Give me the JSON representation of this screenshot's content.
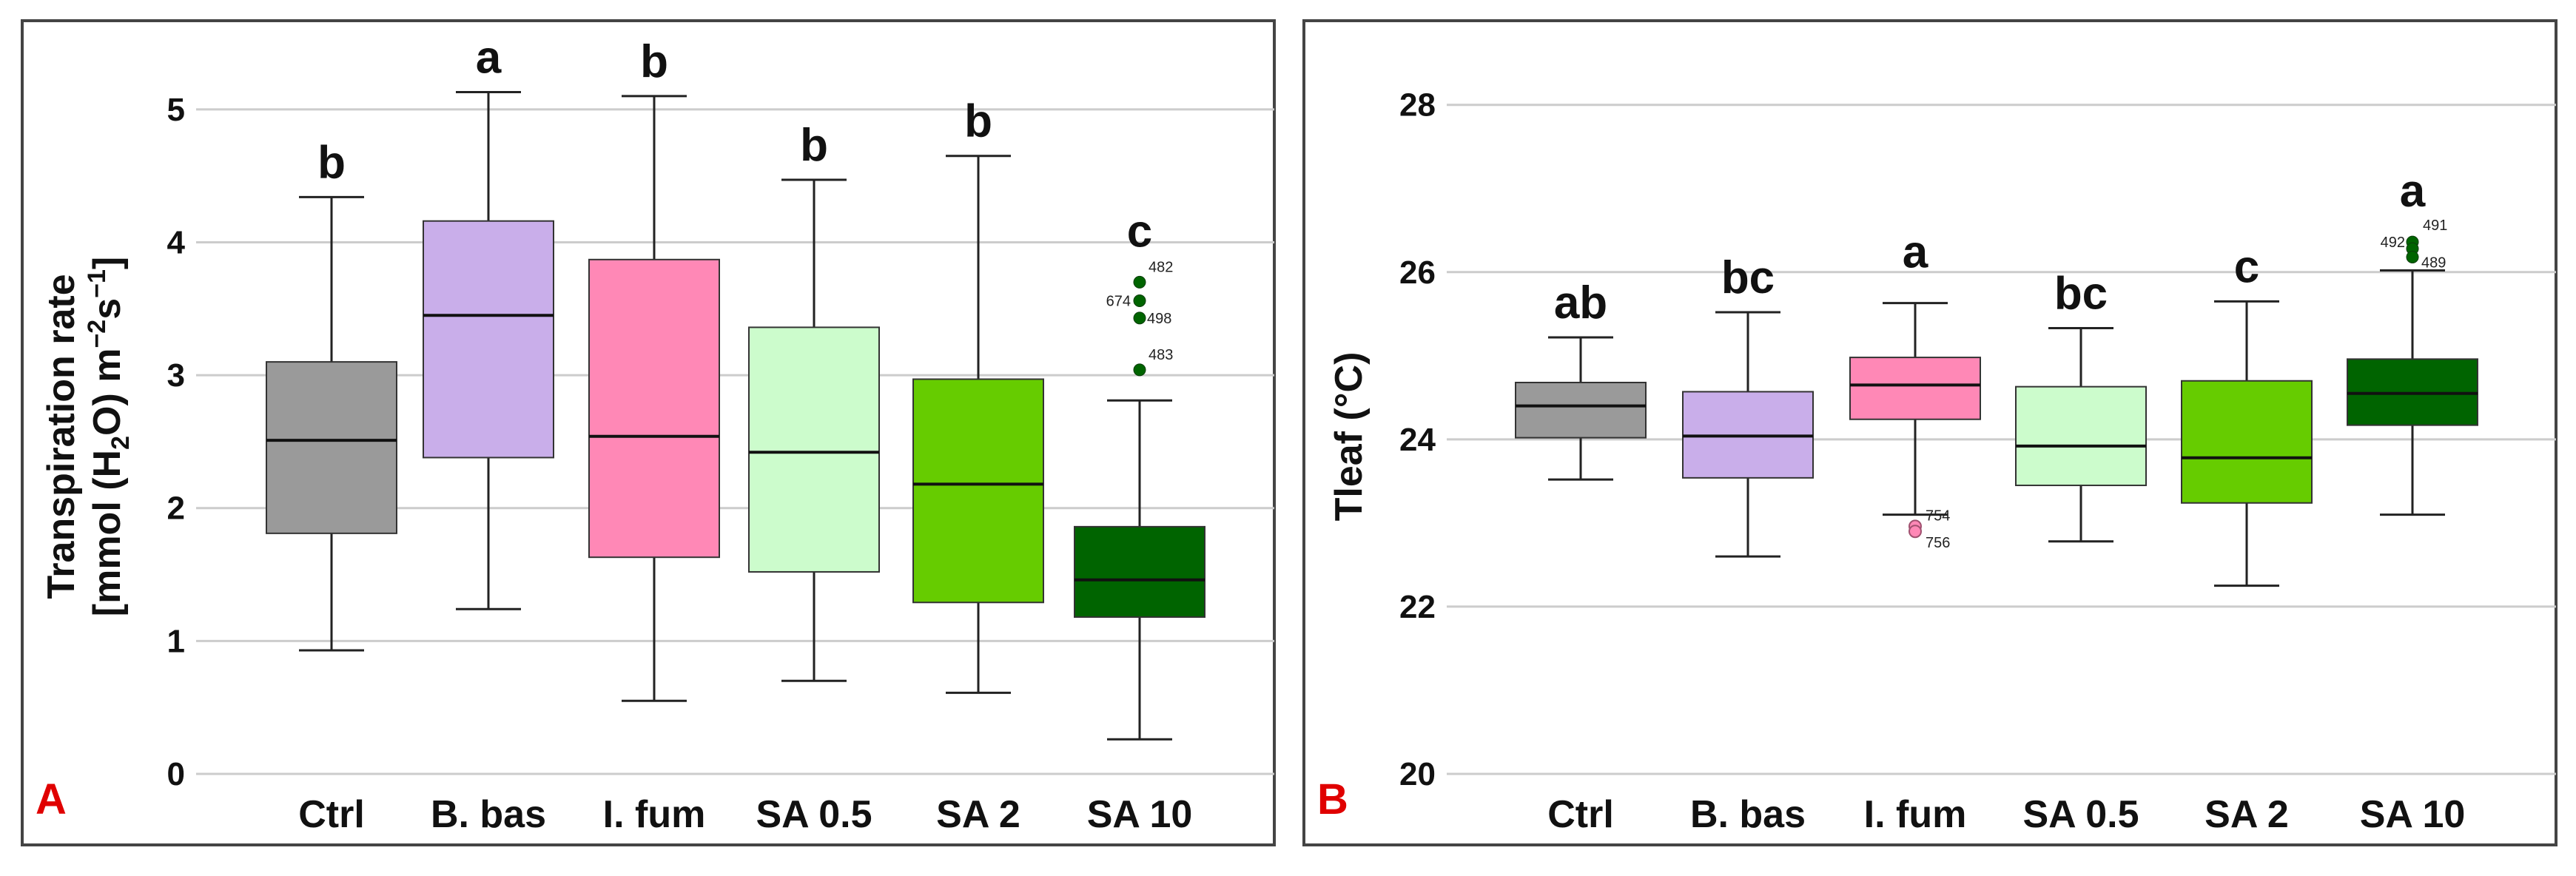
{
  "chart_data": [
    {
      "panel": "A",
      "type": "box",
      "ylabel_line1": "Transpiration rate",
      "ylabel_line2": "[mmol (H",
      "ylabel_sub": "2",
      "ylabel_line2b": "O) m",
      "ylabel_sup1": "−2",
      "ylabel_mid": "s",
      "ylabel_sup2": "−1",
      "ylabel_end": "]",
      "ylim": [
        0,
        5.5
      ],
      "yticks": [
        0,
        1,
        2,
        3,
        4,
        5
      ],
      "categories": [
        "Ctrl",
        "B. bas",
        "I. fum",
        "SA 0.5",
        "SA 2",
        "SA 10"
      ],
      "colors": [
        "#9a9a9a",
        "#c9aeea",
        "#ff88b6",
        "#ccfccc",
        "#66cc00",
        "#006400"
      ],
      "boxes": [
        {
          "min": 0.93,
          "q1": 1.81,
          "median": 2.51,
          "q3": 3.1,
          "max": 4.34,
          "letter": "b",
          "outliers": []
        },
        {
          "min": 1.24,
          "q1": 2.38,
          "median": 3.45,
          "q3": 4.16,
          "max": 5.13,
          "letter": "a",
          "outliers": []
        },
        {
          "min": 0.55,
          "q1": 1.63,
          "median": 2.54,
          "q3": 3.87,
          "max": 5.1,
          "letter": "b",
          "outliers": []
        },
        {
          "min": 0.7,
          "q1": 1.52,
          "median": 2.42,
          "q3": 3.36,
          "max": 4.47,
          "letter": "b",
          "outliers": []
        },
        {
          "min": 0.61,
          "q1": 1.29,
          "median": 2.18,
          "q3": 2.97,
          "max": 4.65,
          "letter": "b",
          "outliers": []
        },
        {
          "min": 0.26,
          "q1": 1.18,
          "median": 1.46,
          "q3": 1.86,
          "max": 2.81,
          "letter": "c",
          "outliers": [
            {
              "value": 3.7,
              "label": "482"
            },
            {
              "value": 3.56,
              "label": "674"
            },
            {
              "value": 3.43,
              "label": "498"
            },
            {
              "value": 3.04,
              "label": "483"
            }
          ]
        }
      ]
    },
    {
      "panel": "B",
      "type": "box",
      "ylabel": "Tleaf  (°C)",
      "ylim": [
        20,
        28.9
      ],
      "yticks": [
        20,
        22,
        24,
        26,
        28
      ],
      "categories": [
        "Ctrl",
        "B. bas",
        "I. fum",
        "SA 0.5",
        "SA 2",
        "SA 10"
      ],
      "colors": [
        "#9a9a9a",
        "#c9aeea",
        "#ff88b6",
        "#ccfccc",
        "#66cc00",
        "#006400"
      ],
      "boxes": [
        {
          "min": 23.52,
          "q1": 24.02,
          "median": 24.4,
          "q3": 24.68,
          "max": 25.22,
          "letter": "ab",
          "outliers": []
        },
        {
          "min": 22.6,
          "q1": 23.54,
          "median": 24.04,
          "q3": 24.57,
          "max": 25.52,
          "letter": "bc",
          "outliers": []
        },
        {
          "min": 23.1,
          "q1": 24.24,
          "median": 24.65,
          "q3": 24.98,
          "max": 25.63,
          "letter": "a",
          "outliers": [
            {
              "value": 22.96,
              "label": "754"
            },
            {
              "value": 22.9,
              "label": "756"
            }
          ]
        },
        {
          "min": 22.78,
          "q1": 23.45,
          "median": 23.92,
          "q3": 24.63,
          "max": 25.33,
          "letter": "bc",
          "outliers": []
        },
        {
          "min": 22.25,
          "q1": 23.24,
          "median": 23.78,
          "q3": 24.7,
          "max": 25.65,
          "letter": "c",
          "outliers": []
        },
        {
          "min": 23.1,
          "q1": 24.17,
          "median": 24.55,
          "q3": 24.96,
          "max": 26.02,
          "letter": "a",
          "outliers": [
            {
              "value": 26.36,
              "label": "491"
            },
            {
              "value": 26.28,
              "label": "492"
            },
            {
              "value": 26.18,
              "label": "489"
            }
          ]
        }
      ]
    }
  ]
}
